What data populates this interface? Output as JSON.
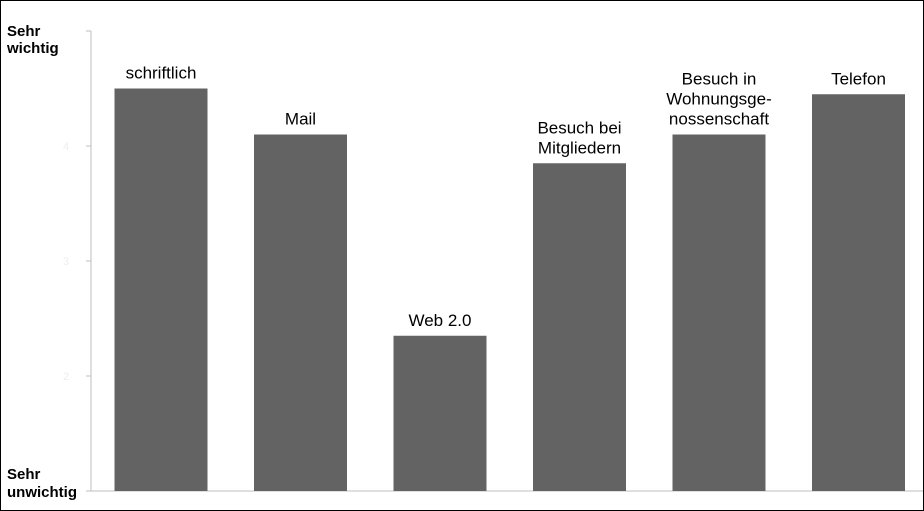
{
  "chart_data": {
    "type": "bar",
    "categories": [
      [
        "schriftlich"
      ],
      [
        "Mail"
      ],
      [
        "Web 2.0"
      ],
      [
        "Besuch bei",
        "Mitgliedern"
      ],
      [
        "Besuch in",
        "Wohnungsge-",
        "nossenschaft"
      ],
      [
        "Telefon"
      ]
    ],
    "values": [
      4.5,
      4.1,
      2.35,
      3.85,
      4.1,
      4.45
    ],
    "ylim": [
      1,
      5
    ],
    "y_axis_top_label": [
      "Sehr",
      "wichtig"
    ],
    "y_axis_bottom_label": [
      "Sehr",
      "unwichtig"
    ],
    "y_ticks": [
      "2",
      "3",
      "4"
    ],
    "grid": false,
    "legend": "none",
    "colors": {
      "bar": "#636363",
      "axis": "#bfbfbf",
      "text": "#000000"
    }
  }
}
